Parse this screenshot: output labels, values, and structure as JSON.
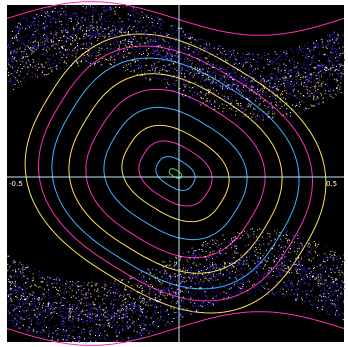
{
  "chart_data": {
    "type": "scatter",
    "title": "",
    "xlabel": "",
    "ylabel": "",
    "xlim": [
      -0.5,
      0.5
    ],
    "ylim": [
      -0.5,
      0.5
    ],
    "x_tick_labels": [
      "-0.5",
      "0.5"
    ],
    "background": "#000000",
    "axis_color": "#bfe9ff",
    "palette": [
      "#ffe34d",
      "#ff2fb6",
      "#3fb3ff",
      "#3a2cff",
      "#7a2bff",
      "#39e046",
      "#ffffff",
      "#ffb040"
    ],
    "series": [
      {
        "name": "",
        "type": "closed-orbit",
        "center": [
          0.0,
          0.0
        ],
        "radii": [
          0.02,
          0.01
        ],
        "color": "#39e046"
      },
      {
        "name": "",
        "type": "closed-orbit",
        "center": [
          0.0,
          0.0
        ],
        "radii": [
          0.06,
          0.04
        ],
        "color": "#3fb3ff"
      },
      {
        "name": "",
        "type": "closed-orbit",
        "center": [
          0.0,
          0.0
        ],
        "radii": [
          0.11,
          0.08
        ],
        "color": "#ff2fb6"
      },
      {
        "name": "",
        "type": "closed-orbit",
        "center": [
          0.0,
          0.0
        ],
        "radii": [
          0.16,
          0.12
        ],
        "color": "#ffe34d"
      },
      {
        "name": "",
        "type": "closed-orbit",
        "center": [
          0.0,
          0.0
        ],
        "radii": [
          0.21,
          0.17
        ],
        "color": "#3fb3ff"
      },
      {
        "name": "",
        "type": "closed-orbit",
        "center": [
          0.0,
          0.0
        ],
        "radii": [
          0.26,
          0.22
        ],
        "color": "#ff2fb6"
      },
      {
        "name": "",
        "type": "closed-orbit",
        "center": [
          0.0,
          0.0
        ],
        "radii": [
          0.31,
          0.26
        ],
        "color": "#ffe34d"
      },
      {
        "name": "",
        "type": "closed-orbit",
        "center": [
          0.0,
          0.0
        ],
        "radii": [
          0.36,
          0.3
        ],
        "color": "#3fb3ff"
      },
      {
        "name": "",
        "type": "closed-orbit",
        "center": [
          0.0,
          0.0
        ],
        "radii": [
          0.4,
          0.33
        ],
        "color": "#ff2fb6"
      },
      {
        "name": "",
        "type": "closed-orbit",
        "center": [
          0.0,
          0.0
        ],
        "radii": [
          0.44,
          0.36
        ],
        "color": "#ffe34d"
      },
      {
        "name": "",
        "type": "chaotic-band",
        "center_y": 0.38,
        "color": "#3a2cff"
      },
      {
        "name": "",
        "type": "chaotic-band",
        "center_y": -0.38,
        "color": "#3a2cff"
      },
      {
        "name": "",
        "type": "chaotic-band",
        "center_y": 0.3,
        "color": "#ffe34d"
      },
      {
        "name": "",
        "type": "chaotic-band",
        "center_y": -0.3,
        "color": "#ffe34d"
      },
      {
        "name": "",
        "type": "wave-orbit",
        "center_y": 0.46,
        "color": "#ff2fb6"
      },
      {
        "name": "",
        "type": "wave-orbit",
        "center_y": -0.46,
        "color": "#ff2fb6"
      }
    ]
  }
}
